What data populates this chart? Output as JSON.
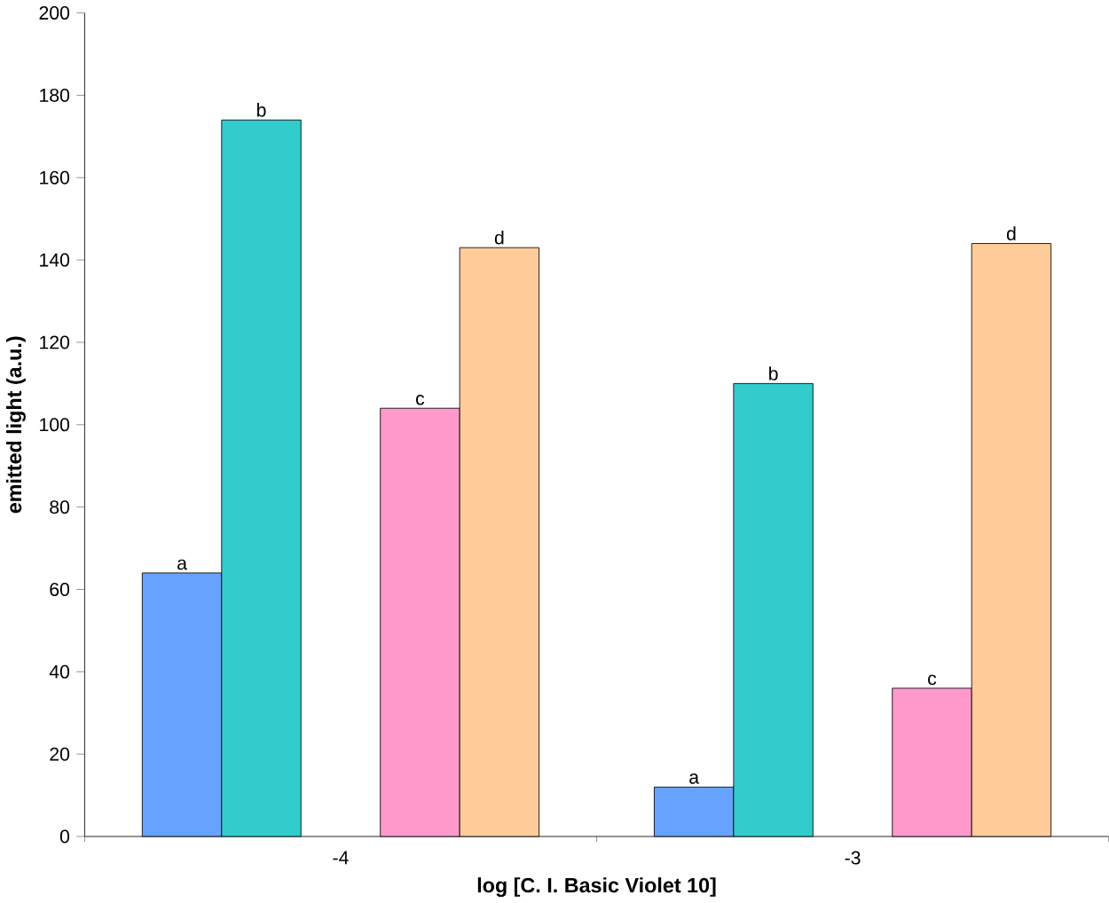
{
  "chart_data": {
    "type": "bar",
    "xlabel": "log [C. I. Basic Violet 10]",
    "ylabel": "emitted light (a.u.)",
    "categories": [
      "-4",
      "-3"
    ],
    "series": [
      {
        "name": "a",
        "color": "#66a3ff",
        "values": [
          64,
          12
        ]
      },
      {
        "name": "b",
        "color": "#33cccc",
        "values": [
          174,
          110
        ]
      },
      {
        "name": "c",
        "color": "#ff99cc",
        "values": [
          104,
          36
        ]
      },
      {
        "name": "d",
        "color": "#ffcc99",
        "values": [
          143,
          144
        ]
      }
    ],
    "ylim": [
      0,
      200
    ],
    "yticks": [
      0,
      20,
      40,
      60,
      80,
      100,
      120,
      140,
      160,
      180,
      200
    ],
    "grid": false
  }
}
